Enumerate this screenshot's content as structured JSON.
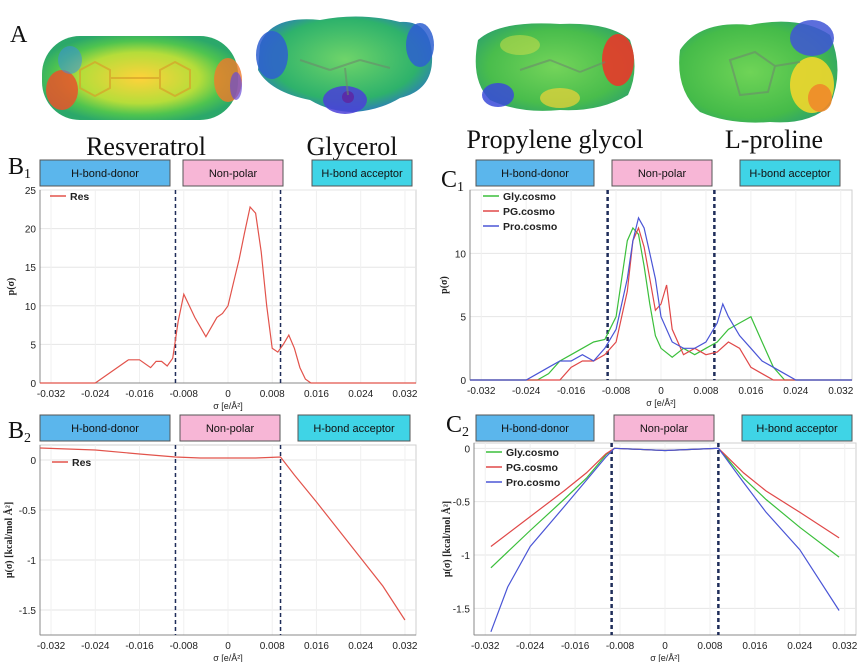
{
  "panel_a": {
    "label": "A",
    "molecules": [
      {
        "name": "Resveratrol",
        "icon": "resveratrol-esp-surface"
      },
      {
        "name": "Glycerol",
        "icon": "glycerol-esp-surface"
      },
      {
        "name": "Propylene glycol",
        "icon": "propylene-glycol-esp-surface"
      },
      {
        "name": "L-proline",
        "icon": "l-proline-esp-surface"
      }
    ]
  },
  "colors": {
    "donor_box": "#5bb6ec",
    "nonpolar_box": "#f7b6d6",
    "acceptor_box": "#3fd4e6",
    "res": "#e2534b",
    "gly": "#3bbf3b",
    "pg": "#e04848",
    "pro": "#4a55d6",
    "divider": "#1f2d5a"
  },
  "region_labels": {
    "donor": "H-bond-donor",
    "nonpolar": "Non-polar",
    "acceptor": "H-bond acceptor"
  },
  "chart_data": [
    {
      "panel": "B1",
      "label_main": "B",
      "label_sub": "1",
      "type": "line",
      "xlabel": "σ [e/Å²]",
      "ylabel": "p(σ)",
      "xlim": [
        -0.034,
        0.034
      ],
      "ylim": [
        0,
        25
      ],
      "xticks": [
        "-0.032",
        "-0.024",
        "-0.016",
        "-0.008",
        "0",
        "0.008",
        "0.016",
        "0.024",
        "0.032"
      ],
      "yticks": [
        "0",
        "5",
        "10",
        "15",
        "20",
        "25"
      ],
      "dividers": [
        -0.0095,
        0.0095
      ],
      "series": [
        {
          "name": "Res",
          "color_key": "res",
          "x": [
            -0.034,
            -0.024,
            -0.021,
            -0.018,
            -0.016,
            -0.014,
            -0.013,
            -0.012,
            -0.011,
            -0.01,
            -0.009,
            -0.008,
            -0.007,
            -0.006,
            -0.004,
            -0.002,
            -0.001,
            0.0,
            0.001,
            0.002,
            0.003,
            0.004,
            0.005,
            0.006,
            0.007,
            0.008,
            0.009,
            0.01,
            0.011,
            0.012,
            0.013,
            0.014,
            0.015,
            0.016,
            0.034
          ],
          "y": [
            0,
            0,
            1.5,
            3.0,
            3.0,
            2.0,
            2.8,
            2.8,
            2.2,
            3.2,
            8.0,
            11.5,
            10.0,
            8.5,
            6.0,
            8.5,
            9.0,
            10.0,
            13.0,
            16.0,
            19.5,
            22.8,
            22.0,
            17.0,
            10.0,
            4.5,
            4.0,
            5.0,
            6.2,
            4.5,
            2.0,
            0.5,
            0,
            0,
            0
          ]
        }
      ]
    },
    {
      "panel": "C1",
      "label_main": "C",
      "label_sub": "1",
      "type": "line",
      "xlabel": "σ [e/Å²]",
      "ylabel": "p(σ)",
      "xlim": [
        -0.034,
        0.034
      ],
      "ylim": [
        0,
        15
      ],
      "xticks": [
        "-0.032",
        "-0.024",
        "-0.016",
        "-0.008",
        "0",
        "0.008",
        "0.016",
        "0.024",
        "0.032"
      ],
      "yticks": [
        "0",
        "5",
        "10"
      ],
      "dividers": [
        -0.0095,
        0.0095
      ],
      "series": [
        {
          "name": "Gly.cosmo",
          "color_key": "gly",
          "x": [
            -0.034,
            -0.022,
            -0.02,
            -0.018,
            -0.016,
            -0.014,
            -0.012,
            -0.01,
            -0.008,
            -0.007,
            -0.006,
            -0.005,
            -0.004,
            -0.003,
            -0.002,
            -0.001,
            0.0,
            0.002,
            0.004,
            0.006,
            0.008,
            0.01,
            0.012,
            0.014,
            0.016,
            0.018,
            0.02,
            0.022,
            0.034
          ],
          "y": [
            0,
            0,
            0.5,
            1.5,
            2.0,
            2.5,
            3.0,
            3.2,
            5.0,
            8.0,
            11.0,
            12.0,
            11.5,
            9.0,
            6.0,
            3.5,
            2.5,
            1.8,
            2.5,
            2.0,
            2.5,
            3.0,
            4.0,
            4.5,
            5.0,
            3.0,
            1.0,
            0,
            0
          ]
        },
        {
          "name": "PG.cosmo",
          "color_key": "pg",
          "x": [
            -0.034,
            -0.018,
            -0.016,
            -0.014,
            -0.012,
            -0.01,
            -0.008,
            -0.006,
            -0.005,
            -0.004,
            -0.003,
            -0.002,
            -0.001,
            0.0,
            0.001,
            0.002,
            0.004,
            0.006,
            0.008,
            0.01,
            0.012,
            0.014,
            0.016,
            0.018,
            0.02,
            0.034
          ],
          "y": [
            0,
            0,
            1.0,
            1.5,
            1.5,
            2.0,
            3.0,
            7.0,
            11.0,
            12.0,
            10.5,
            8.0,
            5.5,
            6.0,
            7.5,
            4.0,
            2.0,
            2.5,
            2.0,
            2.2,
            3.0,
            2.5,
            1.0,
            0.5,
            0,
            0
          ]
        },
        {
          "name": "Pro.cosmo",
          "color_key": "pro",
          "x": [
            -0.034,
            -0.024,
            -0.022,
            -0.02,
            -0.018,
            -0.016,
            -0.014,
            -0.012,
            -0.01,
            -0.008,
            -0.006,
            -0.005,
            -0.004,
            -0.003,
            -0.002,
            -0.001,
            0.0,
            0.002,
            0.004,
            0.006,
            0.008,
            0.01,
            0.011,
            0.012,
            0.014,
            0.016,
            0.018,
            0.02,
            0.022,
            0.024,
            0.034
          ],
          "y": [
            0,
            0,
            0.5,
            1.0,
            1.5,
            1.5,
            2.0,
            1.5,
            2.5,
            4.0,
            8.0,
            11.0,
            12.8,
            12.0,
            10.0,
            8.0,
            5.0,
            3.0,
            2.5,
            2.5,
            3.0,
            4.5,
            6.0,
            5.0,
            3.5,
            2.5,
            1.5,
            1.0,
            0.5,
            0,
            0
          ]
        }
      ]
    },
    {
      "panel": "B2",
      "label_main": "B",
      "label_sub": "2",
      "type": "line",
      "xlabel": "σ [e/Å²]",
      "ylabel": "μ(σ) [kcal/mol Å²]",
      "xlim": [
        -0.034,
        0.034
      ],
      "ylim": [
        -1.75,
        0.15
      ],
      "xticks": [
        "-0.032",
        "-0.024",
        "-0.016",
        "-0.008",
        "0",
        "0.008",
        "0.016",
        "0.024",
        "0.032"
      ],
      "yticks": [
        "0",
        "-0.5",
        "-1",
        "-1.5"
      ],
      "dividers": [
        -0.0095,
        0.0095
      ],
      "series": [
        {
          "name": "Res",
          "color_key": "res",
          "x": [
            -0.034,
            -0.024,
            -0.016,
            -0.0095,
            -0.005,
            0.0,
            0.005,
            0.0095,
            0.012,
            0.016,
            0.02,
            0.024,
            0.028,
            0.032
          ],
          "y": [
            0.12,
            0.1,
            0.06,
            0.03,
            0.02,
            0.02,
            0.02,
            0.03,
            -0.15,
            -0.42,
            -0.7,
            -0.98,
            -1.26,
            -1.6
          ]
        }
      ]
    },
    {
      "panel": "C2",
      "label_main": "C",
      "label_sub": "2",
      "type": "line",
      "xlabel": "σ [e/Å²]",
      "ylabel": "μ(σ) [kcal/mol Å²]",
      "xlim": [
        -0.034,
        0.034
      ],
      "ylim": [
        -1.75,
        0.05
      ],
      "xticks": [
        "-0.032",
        "-0.024",
        "-0.016",
        "-0.008",
        "0",
        "0.008",
        "0.016",
        "0.024",
        "0.032"
      ],
      "yticks": [
        "0",
        "-0.5",
        "-1",
        "-1.5"
      ],
      "dividers": [
        -0.0095,
        0.0095
      ],
      "series": [
        {
          "name": "Gly.cosmo",
          "color_key": "gly",
          "x": [
            -0.031,
            -0.024,
            -0.018,
            -0.014,
            -0.0105,
            -0.009,
            0.0,
            0.0095,
            0.0105,
            0.014,
            0.018,
            0.024,
            0.031
          ],
          "y": [
            -1.12,
            -0.77,
            -0.48,
            -0.28,
            -0.06,
            0.0,
            -0.02,
            0.0,
            -0.06,
            -0.28,
            -0.48,
            -0.74,
            -1.02
          ]
        },
        {
          "name": "PG.cosmo",
          "color_key": "pg",
          "x": [
            -0.031,
            -0.024,
            -0.018,
            -0.014,
            -0.0105,
            -0.009,
            0.0,
            0.0095,
            0.0105,
            0.014,
            0.018,
            0.024,
            0.031
          ],
          "y": [
            -0.92,
            -0.64,
            -0.4,
            -0.23,
            -0.05,
            0.0,
            -0.02,
            0.0,
            -0.05,
            -0.23,
            -0.4,
            -0.6,
            -0.84
          ]
        },
        {
          "name": "Pro.cosmo",
          "color_key": "pro",
          "x": [
            -0.031,
            -0.028,
            -0.024,
            -0.018,
            -0.014,
            -0.0105,
            -0.009,
            0.0,
            0.0095,
            0.0105,
            0.014,
            0.018,
            0.024,
            0.031
          ],
          "y": [
            -1.72,
            -1.3,
            -0.92,
            -0.55,
            -0.3,
            -0.08,
            0.0,
            -0.02,
            0.0,
            -0.07,
            -0.32,
            -0.6,
            -0.95,
            -1.52
          ]
        }
      ]
    }
  ]
}
